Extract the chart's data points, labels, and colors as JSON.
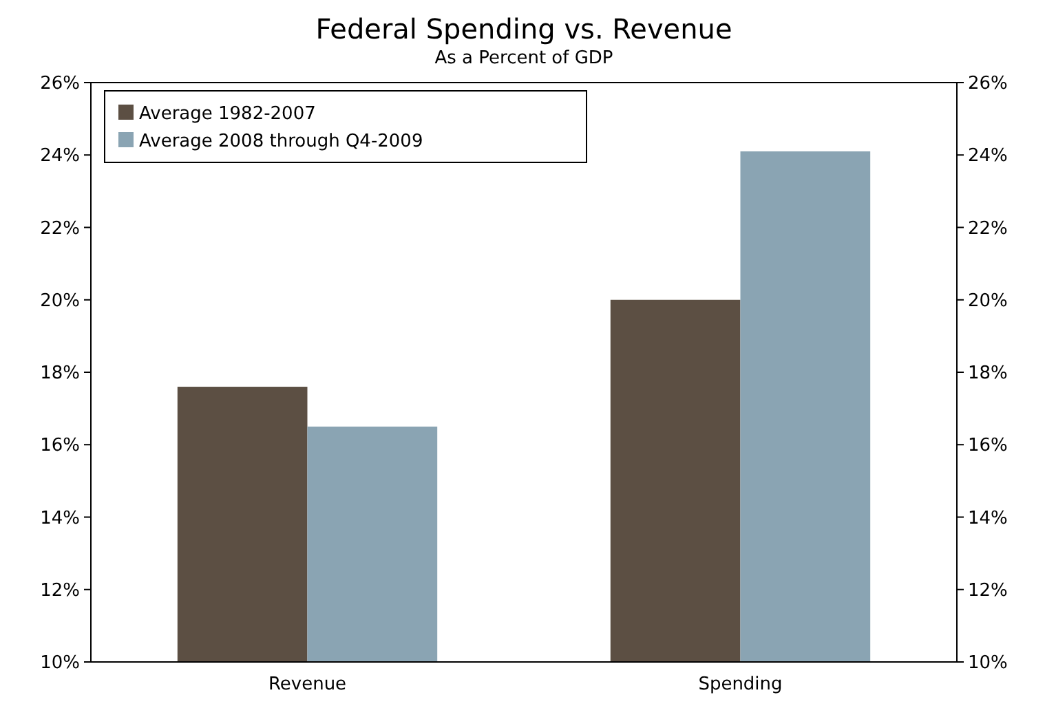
{
  "chart_data": {
    "type": "bar",
    "title": "Federal Spending vs. Revenue",
    "subtitle": "As a Percent of GDP",
    "categories": [
      "Revenue",
      "Spending"
    ],
    "series": [
      {
        "name": "Average 1982-2007",
        "color": "#5c4f43",
        "values": [
          17.6,
          20.0
        ]
      },
      {
        "name": "Average 2008 through Q4-2009",
        "color": "#8aa4b3",
        "values": [
          16.5,
          24.1
        ]
      }
    ],
    "ylim": [
      10,
      26
    ],
    "yticks": [
      {
        "value": 10,
        "label": "10%"
      },
      {
        "value": 12,
        "label": "12%"
      },
      {
        "value": 14,
        "label": "14%"
      },
      {
        "value": 16,
        "label": "16%"
      },
      {
        "value": 18,
        "label": "18%"
      },
      {
        "value": 20,
        "label": "20%"
      },
      {
        "value": 22,
        "label": "22%"
      },
      {
        "value": 24,
        "label": "24%"
      },
      {
        "value": 26,
        "label": "26%"
      }
    ],
    "y2lim": [
      10,
      26
    ],
    "y2ticks": [
      {
        "value": 10,
        "label": "10%"
      },
      {
        "value": 12,
        "label": "12%"
      },
      {
        "value": 14,
        "label": "14%"
      },
      {
        "value": 16,
        "label": "16%"
      },
      {
        "value": 18,
        "label": "18%"
      },
      {
        "value": 20,
        "label": "20%"
      },
      {
        "value": 22,
        "label": "22%"
      },
      {
        "value": 24,
        "label": "24%"
      },
      {
        "value": 26,
        "label": "26%"
      }
    ],
    "grid": false,
    "legend": "top left"
  }
}
